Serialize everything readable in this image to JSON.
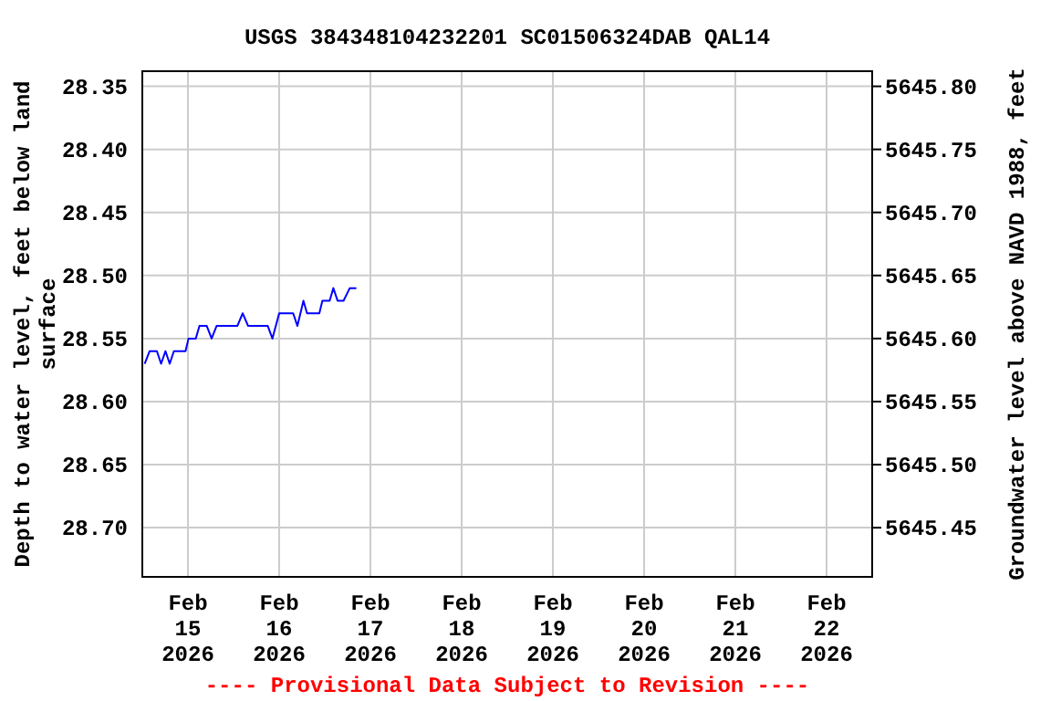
{
  "chart_data": {
    "type": "line",
    "title": "USGS 384348104232201 SC01506324DAB QAL14",
    "ylabel": "Depth to water level, feet below land surface",
    "y2label": "Groundwater level above NAVD 1988, feet",
    "annotations": [
      "---- Provisional Data Subject to Revision ----"
    ],
    "x": [
      "2026-02-14T12:37",
      "2026-02-14T13:55",
      "2026-02-14T15:50",
      "2026-02-14T16:56",
      "2026-02-14T18:06",
      "2026-02-14T19:12",
      "2026-02-14T20:18",
      "2026-02-14T23:22",
      "2026-02-15T00:09",
      "2026-02-15T02:04",
      "2026-02-15T03:02",
      "2026-02-15T04:57",
      "2026-02-15T06:14",
      "2026-02-15T07:32",
      "2026-02-15T13:00",
      "2026-02-15T14:24",
      "2026-02-15T15:50",
      "2026-02-15T21:00",
      "2026-02-15T22:13",
      "2026-02-16T00:00",
      "2026-02-16T03:41",
      "2026-02-16T04:48",
      "2026-02-16T06:23",
      "2026-02-16T07:20",
      "2026-02-16T10:34",
      "2026-02-16T11:22",
      "2026-02-16T13:17",
      "2026-02-16T14:15",
      "2026-02-16T15:22",
      "2026-02-16T16:56",
      "2026-02-16T18:34",
      "2026-02-16T20:18"
    ],
    "series": [
      {
        "color": "#0000ff",
        "values": [
          28.57,
          28.56,
          28.56,
          28.57,
          28.56,
          28.57,
          28.56,
          28.56,
          28.55,
          28.55,
          28.54,
          28.54,
          28.55,
          28.54,
          28.54,
          28.53,
          28.54,
          28.54,
          28.55,
          28.53,
          28.53,
          28.54,
          28.52,
          28.53,
          28.53,
          28.52,
          28.52,
          28.51,
          28.52,
          28.52,
          28.51,
          28.51
        ]
      }
    ],
    "xlim": [
      "2026-02-14T12:00",
      "2026-02-22T12:00"
    ],
    "xticks": [
      {
        "value": "2026-02-15",
        "label": "Feb 15 2026"
      },
      {
        "value": "2026-02-16",
        "label": "Feb 16 2026"
      },
      {
        "value": "2026-02-17",
        "label": "Feb 17 2026"
      },
      {
        "value": "2026-02-18",
        "label": "Feb 18 2026"
      },
      {
        "value": "2026-02-19",
        "label": "Feb 19 2026"
      },
      {
        "value": "2026-02-20",
        "label": "Feb 20 2026"
      },
      {
        "value": "2026-02-21",
        "label": "Feb 21 2026"
      },
      {
        "value": "2026-02-22",
        "label": "Feb 22 2026"
      }
    ],
    "ylim": [
      28.739,
      28.338
    ],
    "yticks": [
      {
        "value": 28.35,
        "label": "28.35"
      },
      {
        "value": 28.4,
        "label": "28.40"
      },
      {
        "value": 28.45,
        "label": "28.45"
      },
      {
        "value": 28.5,
        "label": "28.50"
      },
      {
        "value": 28.55,
        "label": "28.55"
      },
      {
        "value": 28.6,
        "label": "28.60"
      },
      {
        "value": 28.65,
        "label": "28.65"
      },
      {
        "value": 28.7,
        "label": "28.70"
      }
    ],
    "y2lim": [
      5645.411,
      5645.812
    ],
    "y2ticks": [
      {
        "value": 5645.8,
        "label": "5645.80"
      },
      {
        "value": 5645.75,
        "label": "5645.75"
      },
      {
        "value": 5645.7,
        "label": "5645.70"
      },
      {
        "value": 5645.65,
        "label": "5645.65"
      },
      {
        "value": 5645.6,
        "label": "5645.60"
      },
      {
        "value": 5645.55,
        "label": "5645.55"
      },
      {
        "value": 5645.5,
        "label": "5645.50"
      },
      {
        "value": 5645.45,
        "label": "5645.45"
      }
    ],
    "grid": true,
    "marker": "none",
    "line_style": "solid"
  }
}
